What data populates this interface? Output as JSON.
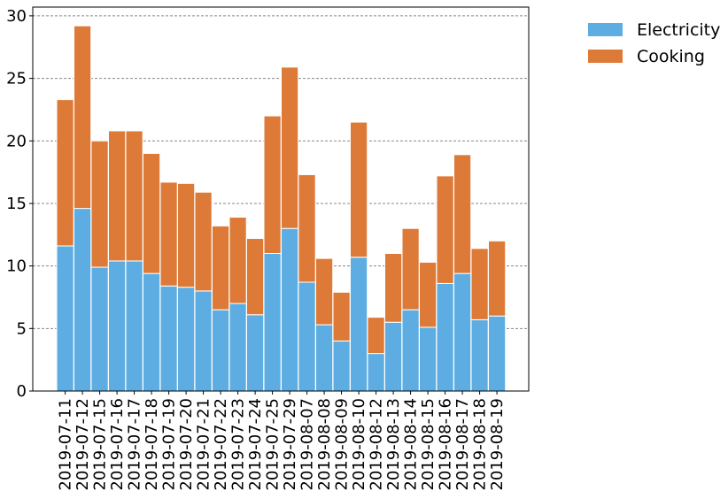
{
  "chart_data": {
    "type": "bar",
    "stacked": true,
    "title": "",
    "xlabel": "",
    "ylabel": "",
    "ylim": [
      0,
      30.7
    ],
    "yticks": [
      0,
      5,
      10,
      15,
      20,
      25,
      30
    ],
    "grid": "horizontal-dashed",
    "legend_position": "outside-top-right",
    "categories": [
      "2019-07-11",
      "2019-07-12",
      "2019-07-15",
      "2019-07-16",
      "2019-07-17",
      "2019-07-18",
      "2019-07-19",
      "2019-07-20",
      "2019-07-21",
      "2019-07-22",
      "2019-07-23",
      "2019-07-24",
      "2019-07-25",
      "2019-07-29",
      "2019-08-07",
      "2019-08-08",
      "2019-08-09",
      "2019-08-10",
      "2019-08-12",
      "2019-08-13",
      "2019-08-14",
      "2019-08-15",
      "2019-08-16",
      "2019-08-17",
      "2019-08-18",
      "2019-08-19"
    ],
    "series": [
      {
        "name": "Electricity",
        "color": "#5dade2",
        "values": [
          11.6,
          14.6,
          9.9,
          10.4,
          10.4,
          9.4,
          8.4,
          8.3,
          8.0,
          6.5,
          7.0,
          6.1,
          11.0,
          13.0,
          8.7,
          5.3,
          4.0,
          10.7,
          3.0,
          5.5,
          6.5,
          5.1,
          8.6,
          9.4,
          5.7,
          6.0
        ]
      },
      {
        "name": "Cooking",
        "color": "#dd7a38",
        "values": [
          11.7,
          14.6,
          10.1,
          10.4,
          10.4,
          9.6,
          8.3,
          8.3,
          7.9,
          6.7,
          6.9,
          6.1,
          11.0,
          12.9,
          8.6,
          5.3,
          3.9,
          10.8,
          2.9,
          5.5,
          6.5,
          5.2,
          8.6,
          9.5,
          5.7,
          6.0
        ]
      }
    ]
  }
}
